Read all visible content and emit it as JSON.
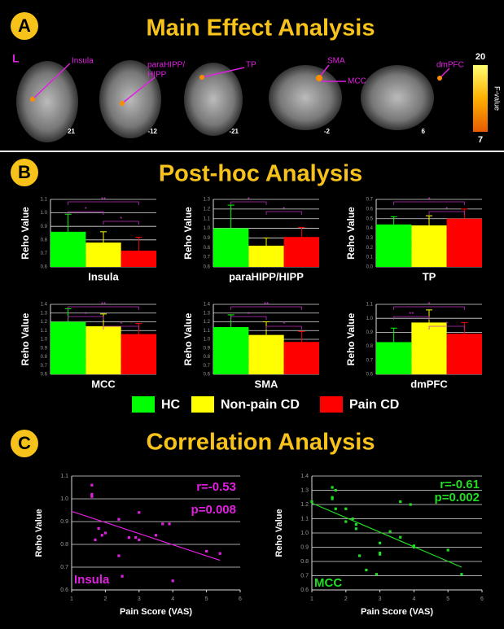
{
  "panel_a": {
    "letter": "A",
    "title": "Main Effect Analysis",
    "side_label": "L",
    "images": [
      {
        "labels": [
          "Insula"
        ],
        "slice": "21"
      },
      {
        "labels": [
          "paraHIPP/",
          "HIPP"
        ],
        "slice": "-12"
      },
      {
        "labels": [
          "TP"
        ],
        "slice": "-21"
      },
      {
        "labels": [
          "SMA",
          "MCC"
        ],
        "slice": "-2"
      },
      {
        "labels": [
          "dmPFC"
        ],
        "slice": "6"
      }
    ],
    "colorbar": {
      "max": 20,
      "min": 7,
      "label": "F-value"
    }
  },
  "panel_b": {
    "letter": "B",
    "title": "Post-hoc Analysis"
  },
  "legend": [
    {
      "name": "HC",
      "color": "#00ff00"
    },
    {
      "name": "Non-pain CD",
      "color": "#ffff00"
    },
    {
      "name": "Pain CD",
      "color": "#ff0000"
    }
  ],
  "panel_c": {
    "letter": "C",
    "title": "Correlation Analysis"
  },
  "chart_data": [
    {
      "type": "bar",
      "xlabel": "Insula",
      "ylabel": "Reho Value",
      "values": [
        0.86,
        0.78,
        0.72
      ],
      "errors": [
        0.13,
        0.08,
        0.1
      ],
      "ylim": [
        0.6,
        1.1
      ],
      "yticks": [
        0.6,
        0.7,
        0.8,
        0.9,
        {
          "value": 1,
          "label": "1.0"
        },
        1.1
      ],
      "significance": [
        "**",
        "*",
        "*"
      ]
    },
    {
      "type": "bar",
      "xlabel": "paraHIPP/HIPP",
      "ylabel": "Reho Value",
      "values": [
        1.0,
        0.82,
        0.91
      ],
      "errors": [
        0.24,
        0.08,
        0.1
      ],
      "ylim": [
        0.6,
        1.3
      ],
      "yticks": [
        0.6,
        0.7,
        0.8,
        0.9,
        {
          "value": 1,
          "label": "1.0"
        },
        1.1,
        1.2,
        1.3
      ],
      "significance": [
        "*",
        "*"
      ]
    },
    {
      "type": "bar",
      "xlabel": "TP",
      "ylabel": "Reho Value",
      "values": [
        0.44,
        0.43,
        0.5
      ],
      "errors": [
        0.08,
        0.1,
        0.1
      ],
      "ylim": [
        0,
        0.7
      ],
      "yticks": [
        {
          "value": 0,
          "label": "0.0"
        },
        0.1,
        0.2,
        0.3,
        0.4,
        0.5,
        0.6,
        0.7
      ],
      "significance": [
        "*",
        "*"
      ]
    },
    {
      "type": "bar",
      "xlabel": "MCC",
      "ylabel": "Reho Value",
      "values": [
        1.2,
        1.15,
        1.06
      ],
      "errors": [
        0.15,
        0.14,
        0.12
      ],
      "ylim": [
        0.6,
        1.4
      ],
      "yticks": [
        0.6,
        0.7,
        0.8,
        0.9,
        {
          "value": 1,
          "label": "1.0"
        },
        1.1,
        1.2,
        1.3,
        1.4
      ],
      "significance": [
        "**",
        "*",
        "*"
      ]
    },
    {
      "type": "bar",
      "xlabel": "SMA",
      "ylabel": "Reho Value",
      "values": [
        1.14,
        1.05,
        0.97
      ],
      "errors": [
        0.14,
        0.15,
        0.12
      ],
      "ylim": [
        0.6,
        1.4
      ],
      "yticks": [
        0.6,
        0.7,
        0.8,
        0.9,
        {
          "value": 1,
          "label": "1.0"
        },
        1.1,
        1.2,
        1.3,
        1.4
      ],
      "significance": [
        "**",
        "*",
        "*"
      ]
    },
    {
      "type": "bar",
      "xlabel": "dmPFC",
      "ylabel": "Reho Value",
      "values": [
        0.83,
        0.97,
        0.89
      ],
      "errors": [
        0.1,
        0.09,
        0.08
      ],
      "ylim": [
        0.6,
        1.1
      ],
      "yticks": [
        0.6,
        0.7,
        0.8,
        0.9,
        {
          "value": 1,
          "label": "1.0"
        },
        1.1
      ],
      "significance": [
        "*",
        "**",
        "*"
      ]
    },
    {
      "type": "scatter",
      "xlabel": "Pain Score (VAS)",
      "ylabel": "Reho Value",
      "color": "#e020e0",
      "region": "Insula",
      "r": "r=-0.53",
      "p": "p=0.008",
      "x": [
        1.6,
        1.6,
        1.6,
        1.7,
        1.8,
        1.9,
        2.0,
        2.4,
        2.4,
        2.5,
        2.7,
        2.9,
        3.0,
        3.0,
        3.5,
        3.7,
        3.9,
        4.0,
        5.0,
        5.4
      ],
      "y": [
        1.06,
        1.02,
        1.01,
        0.82,
        0.87,
        0.84,
        0.85,
        0.91,
        0.75,
        0.66,
        0.83,
        0.83,
        0.82,
        0.94,
        0.84,
        0.89,
        0.89,
        0.64,
        0.77,
        0.76
      ],
      "fit": {
        "x": [
          1,
          5.4
        ],
        "y": [
          0.945,
          0.73
        ]
      },
      "xlim": [
        1,
        6
      ],
      "xticks": [
        1,
        2,
        3,
        4,
        5,
        6
      ],
      "ylim": [
        0.6,
        1.1
      ],
      "yticks": [
        0.6,
        0.7,
        0.8,
        0.9,
        {
          "value": 1,
          "label": "1.0"
        },
        1.1
      ]
    },
    {
      "type": "scatter",
      "xlabel": "Pain Score (VAS)",
      "ylabel": "Reho Value",
      "color": "#22dd22",
      "region": "MCC",
      "r": "r=-0.61",
      "p": "p=0.002",
      "x": [
        1.0,
        1.6,
        1.6,
        1.6,
        1.7,
        1.7,
        2.0,
        2.0,
        2.2,
        2.3,
        2.3,
        2.4,
        2.6,
        2.9,
        3.0,
        3.0,
        3.0,
        3.3,
        3.6,
        3.6,
        3.9,
        4.0,
        4.0,
        5.0,
        5.4
      ],
      "y": [
        1.22,
        1.32,
        1.25,
        1.24,
        1.3,
        1.17,
        1.08,
        1.17,
        1.1,
        1.06,
        1.03,
        0.84,
        0.74,
        0.71,
        0.93,
        0.86,
        0.85,
        1.01,
        1.22,
        0.97,
        1.2,
        0.91,
        0.9,
        0.88,
        0.71
      ],
      "fit": {
        "x": [
          1,
          5.4
        ],
        "y": [
          1.21,
          0.76
        ]
      },
      "xlim": [
        1,
        6
      ],
      "xticks": [
        1,
        2,
        3,
        4,
        5,
        6
      ],
      "ylim": [
        0.6,
        1.4
      ],
      "yticks": [
        0.6,
        0.7,
        0.8,
        0.9,
        {
          "value": 1,
          "label": "1.0"
        },
        1.1,
        1.2,
        1.3,
        1.4
      ]
    }
  ]
}
